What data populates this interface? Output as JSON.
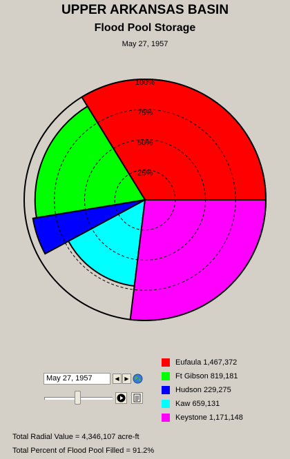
{
  "title": "UPPER ARKANSAS BASIN",
  "subtitle": "Flood Pool Storage",
  "date": "May 27, 1957",
  "ring_labels": [
    "25%",
    "50%",
    "75%",
    "100%"
  ],
  "controls": {
    "date_value": "May 27, 1957",
    "prev_icon": "prev-arrow-icon",
    "next_icon": "next-arrow-icon",
    "globe_icon": "globe-icon",
    "play_icon": "play-icon",
    "report_icon": "report-icon",
    "slider_position": 0.5
  },
  "footer": {
    "total_radial": "Total Radial Value =  4,346,107 acre-ft",
    "total_percent": "Total Percent of Flood Pool Filled =  91.2%"
  },
  "chart_data": {
    "type": "polar-area",
    "title": "UPPER ARKANSAS BASIN",
    "subtitle": "Flood Pool Storage",
    "date": "May 27, 1957",
    "radial_axis": {
      "ticks": [
        "25%",
        "50%",
        "75%",
        "100%"
      ],
      "range": [
        0,
        100
      ]
    },
    "series": [
      {
        "name": "Eufaula",
        "label": "Eufaula  1,467,372",
        "value": 1467372,
        "percent_filled": 100,
        "color": "#ff0000"
      },
      {
        "name": "Ft Gibson",
        "label": "Ft Gibson  819,181",
        "value": 819181,
        "percent_filled": 91,
        "color": "#00ff00"
      },
      {
        "name": "Hudson",
        "label": "Hudson  229,275",
        "value": 229275,
        "percent_filled": 94,
        "color": "#0000ff"
      },
      {
        "name": "Kaw",
        "label": "Kaw  659,131",
        "value": 659131,
        "percent_filled": 72,
        "color": "#00ffff"
      },
      {
        "name": "Keystone",
        "label": "Keystone  1,171,148",
        "value": 1171148,
        "percent_filled": 100,
        "color": "#ff00ff"
      }
    ]
  }
}
